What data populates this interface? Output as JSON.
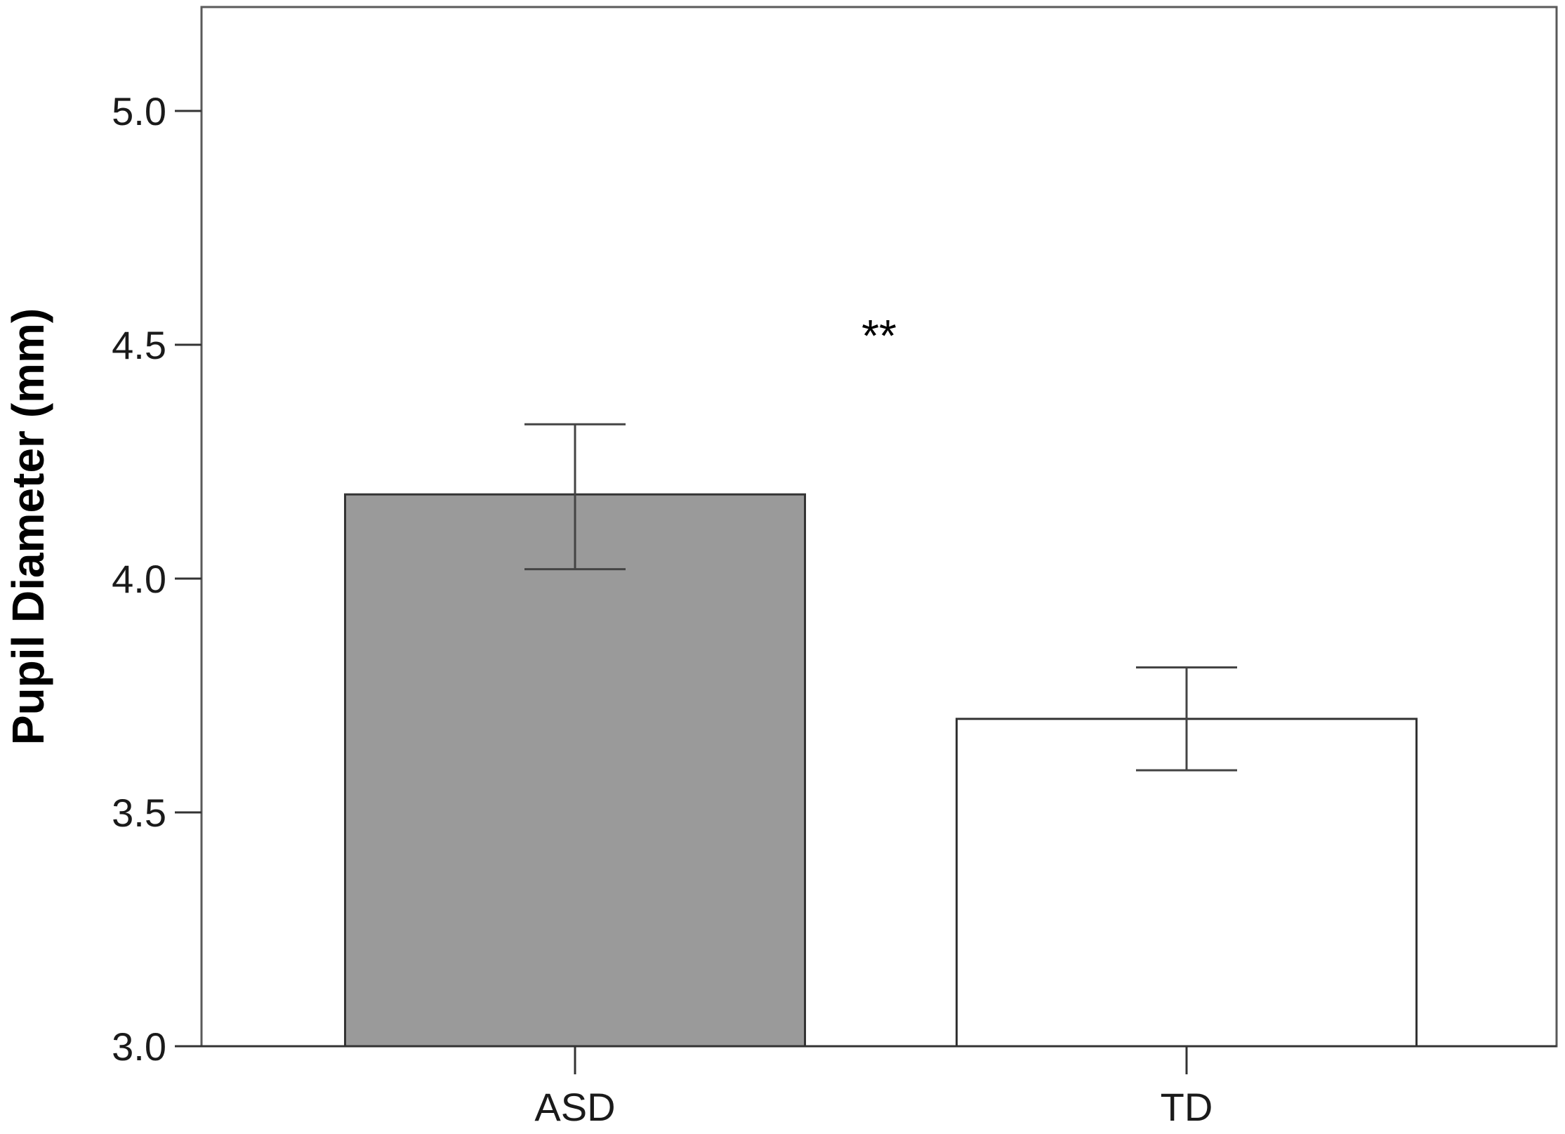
{
  "chart_data": {
    "type": "bar",
    "title": "",
    "xlabel": "",
    "ylabel": "Pupil Diameter (mm)",
    "categories": [
      "ASD",
      "TD"
    ],
    "values": [
      4.18,
      3.7
    ],
    "error_upper": [
      4.33,
      3.81
    ],
    "error_lower": [
      4.02,
      3.59
    ],
    "ylim": [
      3.0,
      5.2
    ],
    "yticks": [
      "3.0",
      "3.5",
      "4.0",
      "4.5",
      "5.0"
    ],
    "ytick_values": [
      3.0,
      3.5,
      4.0,
      4.5,
      5.0
    ],
    "bar_colors": [
      "#9a9a9a",
      "#ffffff"
    ],
    "grid": false,
    "annotations": [
      {
        "text": "**",
        "between": [
          "ASD",
          "TD"
        ]
      }
    ]
  }
}
